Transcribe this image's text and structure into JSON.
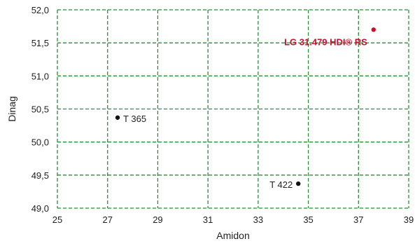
{
  "chart_data": {
    "type": "scatter",
    "xlabel": "Amidon",
    "ylabel": "Dinag",
    "xlim": [
      25,
      39
    ],
    "ylim": [
      49.0,
      52.0
    ],
    "x_ticks": [
      25,
      27,
      29,
      31,
      33,
      35,
      37,
      39
    ],
    "x_tick_labels": [
      "25",
      "27",
      "29",
      "31",
      "33",
      "35",
      "37",
      "39"
    ],
    "y_ticks": [
      49.0,
      49.5,
      50.0,
      50.5,
      51.0,
      51.5,
      52.0
    ],
    "y_tick_labels": [
      "49,0",
      "49,5",
      "50,0",
      "50,5",
      "51,0",
      "51,5",
      "52,0"
    ],
    "grid": true,
    "grid_style": "dashed",
    "grid_color": "#2e8b3a",
    "points": [
      {
        "label": "T 365",
        "x": 27.4,
        "y": 50.37,
        "color": "#111111",
        "highlight": false
      },
      {
        "label": "T 422",
        "x": 34.6,
        "y": 49.37,
        "color": "#111111",
        "highlight": false
      },
      {
        "label": "LG 31.479 HDI® RS",
        "x": 37.6,
        "y": 51.7,
        "color": "#c8102e",
        "highlight": true
      }
    ]
  }
}
